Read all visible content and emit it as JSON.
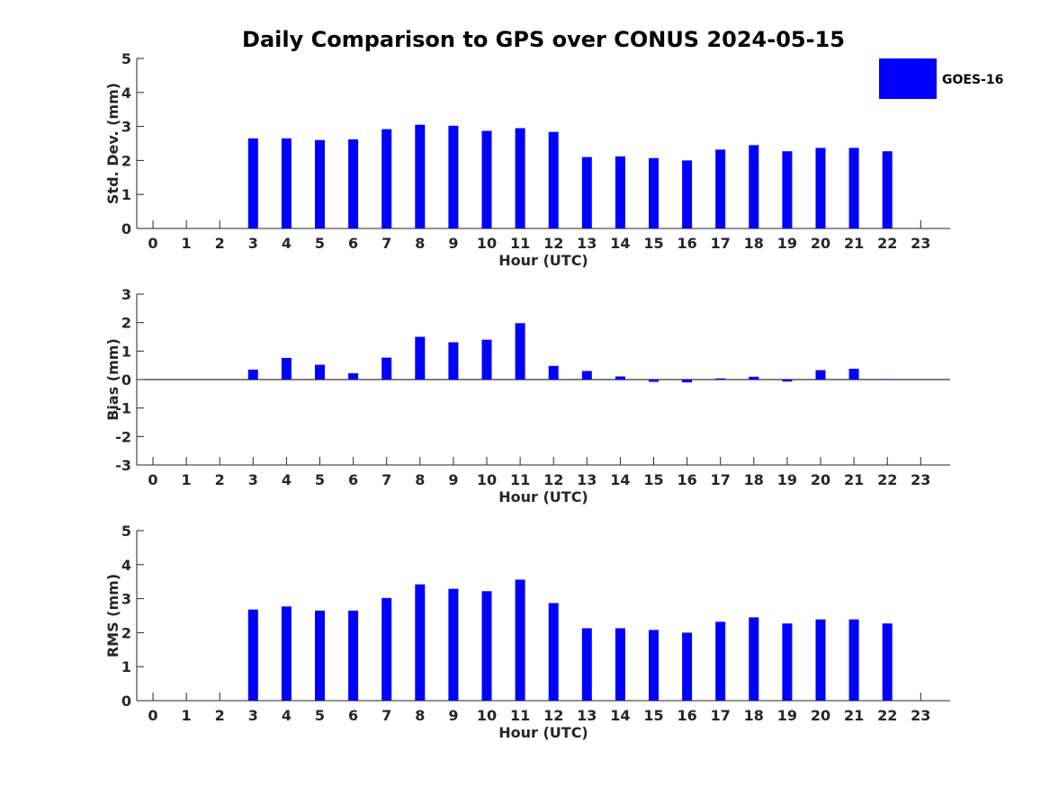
{
  "title": "Daily Comparison to GPS over CONUS 2024-05-15",
  "legend": {
    "label": "GOES-16",
    "color": "#0000ff"
  },
  "chart_data": [
    {
      "type": "bar",
      "name": "std-dev",
      "xlabel": "Hour (UTC)",
      "ylabel": "Std. Dev. (mm)",
      "ylim": [
        0,
        5
      ],
      "yticks": [
        0,
        1,
        2,
        3,
        4,
        5
      ],
      "categories": [
        "0",
        "1",
        "2",
        "3",
        "4",
        "5",
        "6",
        "7",
        "8",
        "9",
        "10",
        "11",
        "12",
        "13",
        "14",
        "15",
        "16",
        "17",
        "18",
        "19",
        "20",
        "21",
        "22",
        "23"
      ],
      "series": [
        {
          "name": "GOES-16",
          "values": [
            null,
            null,
            null,
            2.65,
            2.65,
            2.6,
            2.62,
            2.92,
            3.05,
            3.02,
            2.87,
            2.95,
            2.84,
            2.1,
            2.12,
            2.07,
            2.0,
            2.32,
            2.45,
            2.27,
            2.37,
            2.37,
            2.27,
            null
          ]
        }
      ]
    },
    {
      "type": "bar",
      "name": "bias",
      "xlabel": "Hour (UTC)",
      "ylabel": "Bias (mm)",
      "ylim": [
        -3,
        3
      ],
      "yticks": [
        -3,
        -2,
        -1,
        0,
        1,
        2,
        3
      ],
      "categories": [
        "0",
        "1",
        "2",
        "3",
        "4",
        "5",
        "6",
        "7",
        "8",
        "9",
        "10",
        "11",
        "12",
        "13",
        "14",
        "15",
        "16",
        "17",
        "18",
        "19",
        "20",
        "21",
        "22",
        "23"
      ],
      "series": [
        {
          "name": "GOES-16",
          "values": [
            null,
            null,
            null,
            0.35,
            0.76,
            0.52,
            0.22,
            0.77,
            1.5,
            1.31,
            1.4,
            1.98,
            0.48,
            0.3,
            0.11,
            -0.08,
            -0.1,
            0.04,
            0.1,
            -0.07,
            0.33,
            0.38,
            0.02,
            null
          ]
        }
      ]
    },
    {
      "type": "bar",
      "name": "rms",
      "xlabel": "Hour (UTC)",
      "ylabel": "RMS (mm)",
      "ylim": [
        0,
        5
      ],
      "yticks": [
        0,
        1,
        2,
        3,
        4,
        5
      ],
      "categories": [
        "0",
        "1",
        "2",
        "3",
        "4",
        "5",
        "6",
        "7",
        "8",
        "9",
        "10",
        "11",
        "12",
        "13",
        "14",
        "15",
        "16",
        "17",
        "18",
        "19",
        "20",
        "21",
        "22",
        "23"
      ],
      "series": [
        {
          "name": "GOES-16",
          "values": [
            null,
            null,
            null,
            2.68,
            2.77,
            2.65,
            2.65,
            3.02,
            3.42,
            3.29,
            3.22,
            3.56,
            2.87,
            2.13,
            2.13,
            2.08,
            2.0,
            2.32,
            2.45,
            2.27,
            2.39,
            2.39,
            2.27,
            null
          ]
        }
      ]
    }
  ]
}
